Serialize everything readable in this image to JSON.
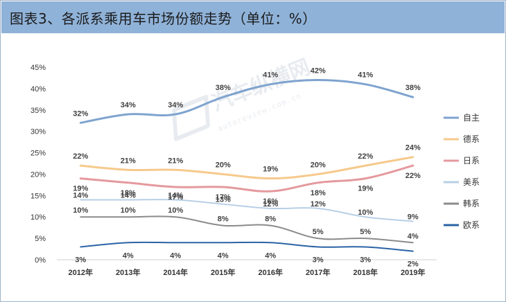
{
  "header": {
    "title": "图表3、各派系乘用车市场份额走势（单位：%）"
  },
  "watermark": {
    "brand": "汽车纵横网",
    "url": "autoreview.com.cn"
  },
  "colors": {
    "title_bar": "#8fb2d8",
    "自主": "#7ea3cf",
    "德系": "#f6c98c",
    "日系": "#e5999d",
    "美系": "#b7cfe6",
    "韩系": "#8b8b8b",
    "欧系": "#2a63a5"
  },
  "chart_data": {
    "type": "line",
    "title": "",
    "xlabel": "",
    "ylabel": "",
    "ylim": [
      0,
      45
    ],
    "y_ticks": [
      "0%",
      "5%",
      "10%",
      "15%",
      "20%",
      "25%",
      "30%",
      "35%",
      "40%",
      "45%"
    ],
    "categories": [
      "2012年",
      "2013年",
      "2014年",
      "2015年",
      "2016年",
      "2017年",
      "2018年",
      "2019年"
    ],
    "legend_position": "right",
    "grid": false,
    "series": [
      {
        "name": "自主",
        "values": [
          32,
          34,
          34,
          38,
          41,
          42,
          41,
          38
        ],
        "labels": [
          "32%",
          "34%",
          "34%",
          "38%",
          "41%",
          "42%",
          "41%",
          "38%"
        ]
      },
      {
        "name": "德系",
        "values": [
          22,
          21,
          21,
          20,
          19,
          20,
          22,
          24
        ],
        "labels": [
          "22%",
          "21%",
          "21%",
          "20%",
          "19%",
          "20%",
          "22%",
          "24%"
        ]
      },
      {
        "name": "日系",
        "values": [
          19,
          18,
          17,
          17,
          16,
          18,
          19,
          22
        ],
        "labels": [
          "19%",
          "18%",
          "17%",
          "17%",
          "16%",
          "18%",
          "19%",
          "22%"
        ]
      },
      {
        "name": "美系",
        "values": [
          14,
          14,
          14,
          13,
          12,
          12,
          10,
          9
        ],
        "labels": [
          "14%",
          "14%",
          "14%",
          "13%",
          "12%",
          "12%",
          "10%",
          "9%"
        ]
      },
      {
        "name": "韩系",
        "values": [
          10,
          10,
          10,
          8,
          8,
          5,
          5,
          4
        ],
        "labels": [
          "10%",
          "10%",
          "10%",
          "8%",
          "8%",
          "5%",
          "5%",
          "4%"
        ]
      },
      {
        "name": "欧系",
        "values": [
          3,
          4,
          4,
          4,
          4,
          3,
          3,
          2
        ],
        "labels": [
          "3%",
          "4%",
          "4%",
          "4%",
          "4%",
          "3%",
          "3%",
          "2%"
        ]
      }
    ]
  }
}
